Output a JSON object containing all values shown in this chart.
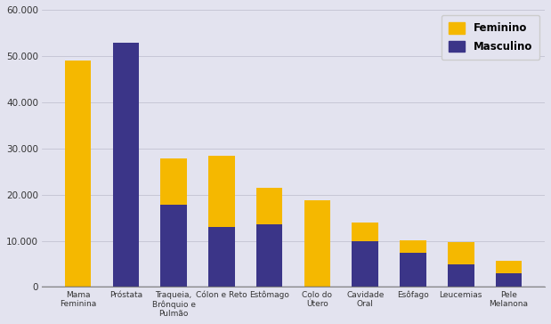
{
  "categories": [
    "Mama\nFeminina",
    "Próstata",
    "Traqueia,\nBrônquio e\nPulmão",
    "Cólon e Reto",
    "Estômago",
    "Colo do\nÚtero",
    "Cavidade\nOral",
    "Esôfago",
    "Leucemias",
    "Pele\nMelanona"
  ],
  "feminino": [
    49000,
    0,
    10000,
    15500,
    8000,
    18700,
    4000,
    2700,
    4800,
    2700
  ],
  "masculino": [
    0,
    52800,
    17800,
    13000,
    13500,
    0,
    10000,
    7500,
    5000,
    3000
  ],
  "color_feminino": "#F5B800",
  "color_masculino": "#3B3588",
  "bg_color": "#E3E3EF",
  "ylim": [
    0,
    60000
  ],
  "yticks": [
    0,
    10000,
    20000,
    30000,
    40000,
    50000,
    60000
  ],
  "legend_labels": [
    "Feminino",
    "Masculino"
  ],
  "bar_width": 0.55
}
